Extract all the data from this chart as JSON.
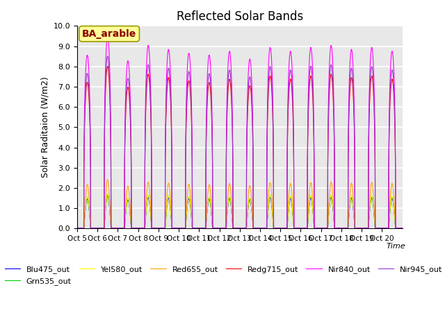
{
  "title": "Reflected Solar Bands",
  "xlabel": "Time",
  "ylabel": "Solar Raditaion (W/m2)",
  "ylim": [
    0,
    10.0
  ],
  "yticks": [
    0.0,
    1.0,
    2.0,
    3.0,
    4.0,
    5.0,
    6.0,
    7.0,
    8.0,
    9.0,
    10.0
  ],
  "xtick_labels": [
    "Oct 5",
    "Oct 6",
    "Oct 7",
    "Oct 8",
    "Oct 9",
    "Oct 10",
    "Oct 11",
    "Oct 12",
    "Oct 13",
    "Oct 14",
    "Oct 15",
    "Oct 16",
    "Oct 17",
    "Oct 18",
    "Oct 19",
    "Oct 20"
  ],
  "num_days": 16,
  "samples_per_day": 144,
  "annotation_text": "BA_arable",
  "annotation_color": "#8B0000",
  "annotation_bg": "#FFFF99",
  "series": [
    {
      "name": "Blu475_out",
      "color": "#0000FF",
      "peak_max": 1.6,
      "shoulder": 1.5
    },
    {
      "name": "Grn535_out",
      "color": "#00CC00",
      "peak_max": 1.7,
      "shoulder": 1.55
    },
    {
      "name": "Yel580_out",
      "color": "#FFFF00",
      "peak_max": 1.7,
      "shoulder": 1.6
    },
    {
      "name": "Red655_out",
      "color": "#FFA500",
      "peak_max": 2.4,
      "shoulder": 2.0
    },
    {
      "name": "Redg715_out",
      "color": "#FF0000",
      "peak_max": 8.0,
      "shoulder": 2.0
    },
    {
      "name": "Nir840_out",
      "color": "#FF00FF",
      "peak_max": 9.5,
      "shoulder": 2.0
    },
    {
      "name": "Nir945_out",
      "color": "#9933CC",
      "peak_max": 8.5,
      "shoulder": 1.8
    }
  ],
  "bg_color": "#E8E8E8",
  "grid_color": "#FFFFFF",
  "fig_bg": "#FFFFFF",
  "daily_peaks": [
    0.9,
    1.0,
    0.87,
    0.95,
    0.93,
    0.91,
    0.9,
    0.92,
    0.88,
    0.94,
    0.92,
    0.94,
    0.95,
    0.93,
    0.94,
    0.92
  ]
}
